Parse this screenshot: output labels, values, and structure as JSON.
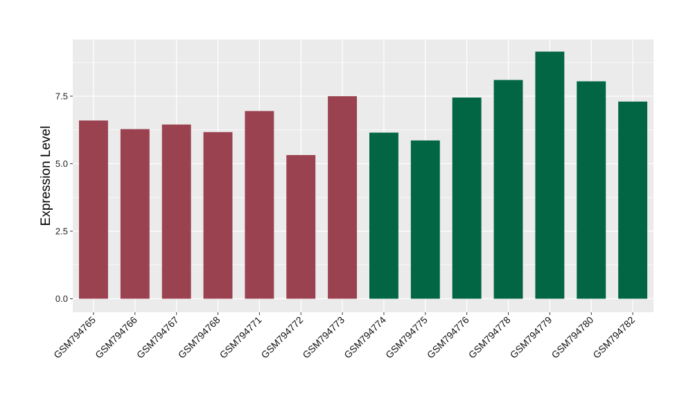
{
  "chart_data": {
    "type": "bar",
    "title": "",
    "xlabel": "",
    "ylabel": "Expression Level",
    "ylim": [
      -0.5,
      9.6
    ],
    "yticks": [
      0.0,
      2.5,
      5.0,
      7.5
    ],
    "ytick_labels": [
      "0.0",
      "2.5",
      "5.0",
      "7.5"
    ],
    "grid": true,
    "legend": "none",
    "categories": [
      "GSM794765",
      "GSM794766",
      "GSM794767",
      "GSM794768",
      "GSM794771",
      "GSM794772",
      "GSM794773",
      "GSM794774",
      "GSM794775",
      "GSM794776",
      "GSM794778",
      "GSM794779",
      "GSM794780",
      "GSM794782"
    ],
    "values": [
      6.6,
      6.28,
      6.45,
      6.17,
      6.95,
      5.32,
      7.5,
      6.15,
      5.86,
      7.45,
      8.1,
      9.15,
      8.05,
      7.3
    ],
    "bar_colors": [
      "#9b4250",
      "#9b4250",
      "#9b4250",
      "#9b4250",
      "#9b4250",
      "#9b4250",
      "#9b4250",
      "#026644",
      "#026644",
      "#026644",
      "#026644",
      "#026644",
      "#026644",
      "#026644"
    ],
    "panel_color": "#ebebeb",
    "grid_color": "#ffffff"
  }
}
